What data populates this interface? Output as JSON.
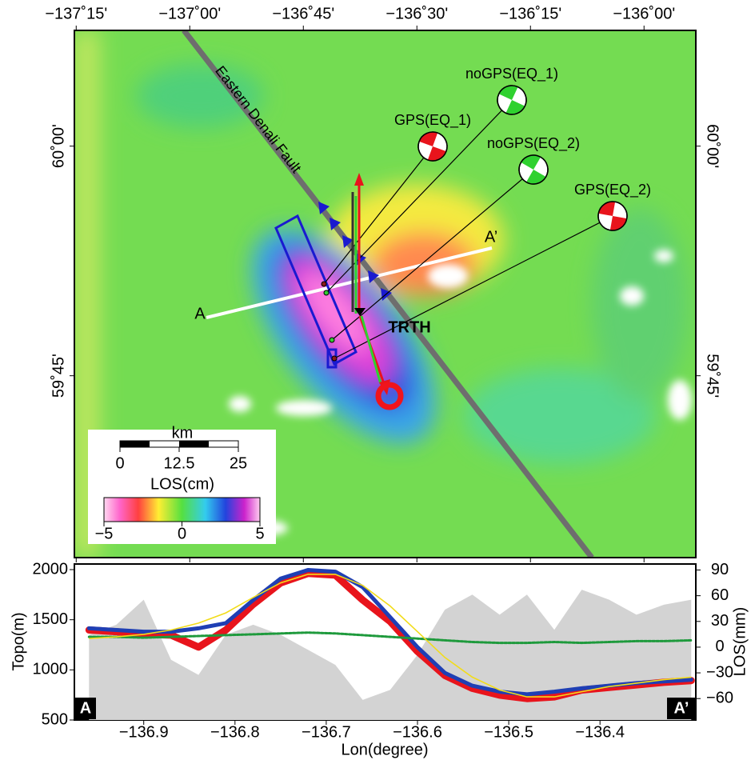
{
  "map": {
    "xlim": [
      -137.254,
      -135.886
    ],
    "ylim": [
      59.552,
      60.126
    ],
    "lon_ticks": [
      {
        "value": -137.25,
        "label": "−137˚15'"
      },
      {
        "value": -137,
        "label": "−137˚00'"
      },
      {
        "value": -136.75,
        "label": "−136˚45'"
      },
      {
        "value": -136.5,
        "label": "−136˚30'"
      },
      {
        "value": -136.25,
        "label": "−136˚15'"
      },
      {
        "value": -136,
        "label": "−136˚00'"
      }
    ],
    "lat_ticks": [
      {
        "value": 60,
        "label": "60˚00'"
      },
      {
        "value": 59.75,
        "label": "59˚45'"
      }
    ],
    "fault_label": "Eastern Denali Fault",
    "mechanisms": [
      {
        "label": "GPS(EQ_1)",
        "color": "#e8141c"
      },
      {
        "label": "noGPS(EQ_1)",
        "color": "#2fd12f"
      },
      {
        "label": "noGPS(EQ_2)",
        "color": "#2fd12f"
      },
      {
        "label": "GPS(EQ_2)",
        "color": "#e8141c"
      }
    ],
    "station": "TRTH",
    "profile_start": "A",
    "profile_end": "A’",
    "scale": {
      "title": "km",
      "ticks": [
        0,
        12.5,
        25
      ]
    },
    "colorbar": {
      "title": "LOS(cm)",
      "ticks": [
        {
          "value": -5,
          "label": "−5"
        },
        0,
        5
      ]
    }
  },
  "chart_data": {
    "type": "line",
    "xlabel": "Lon(degree)",
    "ylabel": "Topo(m)",
    "y2label": "LOS(mm)",
    "corner_left": "A",
    "corner_right": "A’",
    "xlim": [
      -136.976,
      -136.295
    ],
    "ylim": [
      500,
      2056
    ],
    "y2lim": [
      -85,
      97
    ],
    "xticks": [
      {
        "value": -136.9,
        "label": "−136.9"
      },
      {
        "value": -136.8,
        "label": "−136.8"
      },
      {
        "value": -136.7,
        "label": "−136.7"
      },
      {
        "value": -136.6,
        "label": "−136.6"
      },
      {
        "value": -136.5,
        "label": "−136.5"
      },
      {
        "value": -136.4,
        "label": "−136.4"
      }
    ],
    "yticks": [
      500,
      1000,
      1500,
      2000
    ],
    "y2ticks": [
      90,
      60,
      30,
      0,
      {
        "value": -30,
        "label": "−30"
      },
      {
        "value": -60,
        "label": "−60"
      }
    ],
    "x": [
      -136.96,
      -136.93,
      -136.9,
      -136.87,
      -136.84,
      -136.81,
      -136.78,
      -136.75,
      -136.72,
      -136.69,
      -136.66,
      -136.63,
      -136.6,
      -136.57,
      -136.54,
      -136.51,
      -136.48,
      -136.45,
      -136.42,
      -136.39,
      -136.36,
      -136.33,
      -136.3
    ],
    "series": [
      {
        "color": "#d3d3d3",
        "axis": "y",
        "style": "area",
        "values": [
          1350,
          1450,
          1700,
          1100,
          950,
          1350,
          1450,
          1350,
          1200,
          1050,
          700,
          800,
          1150,
          1600,
          1750,
          1550,
          1750,
          1400,
          1800,
          1700,
          1550,
          1650,
          1700
        ]
      },
      {
        "color": "#e8141c",
        "axis": "y2",
        "style": "dots",
        "values": [
          20,
          18,
          15,
          14,
          0,
          20,
          50,
          75,
          86,
          84,
          55,
          30,
          -5,
          -33,
          -48,
          -56,
          -60,
          -58,
          -50,
          -47,
          -44,
          -41,
          -39
        ]
      },
      {
        "color": "#1f3fb4",
        "axis": "y2",
        "style": "dots",
        "values": [
          22,
          20,
          18,
          18,
          22,
          28,
          55,
          80,
          90,
          88,
          70,
          35,
          0,
          -30,
          -45,
          -52,
          -55,
          -52,
          -48,
          -45,
          -42,
          -40,
          -38
        ]
      },
      {
        "color": "#1e9a3c",
        "axis": "y2",
        "style": "dots",
        "values": [
          12,
          12,
          11,
          12,
          13,
          14,
          15,
          16,
          17,
          16,
          14,
          12,
          10,
          8,
          6,
          5,
          5,
          6,
          5,
          6,
          7,
          7,
          8
        ]
      },
      {
        "color": "#f2dc1a",
        "axis": "y2",
        "style": "line",
        "values": [
          10,
          12,
          15,
          20,
          28,
          40,
          58,
          75,
          85,
          85,
          72,
          48,
          18,
          -12,
          -35,
          -50,
          -58,
          -58,
          -52,
          -46,
          -42,
          -38,
          -35
        ]
      }
    ]
  }
}
